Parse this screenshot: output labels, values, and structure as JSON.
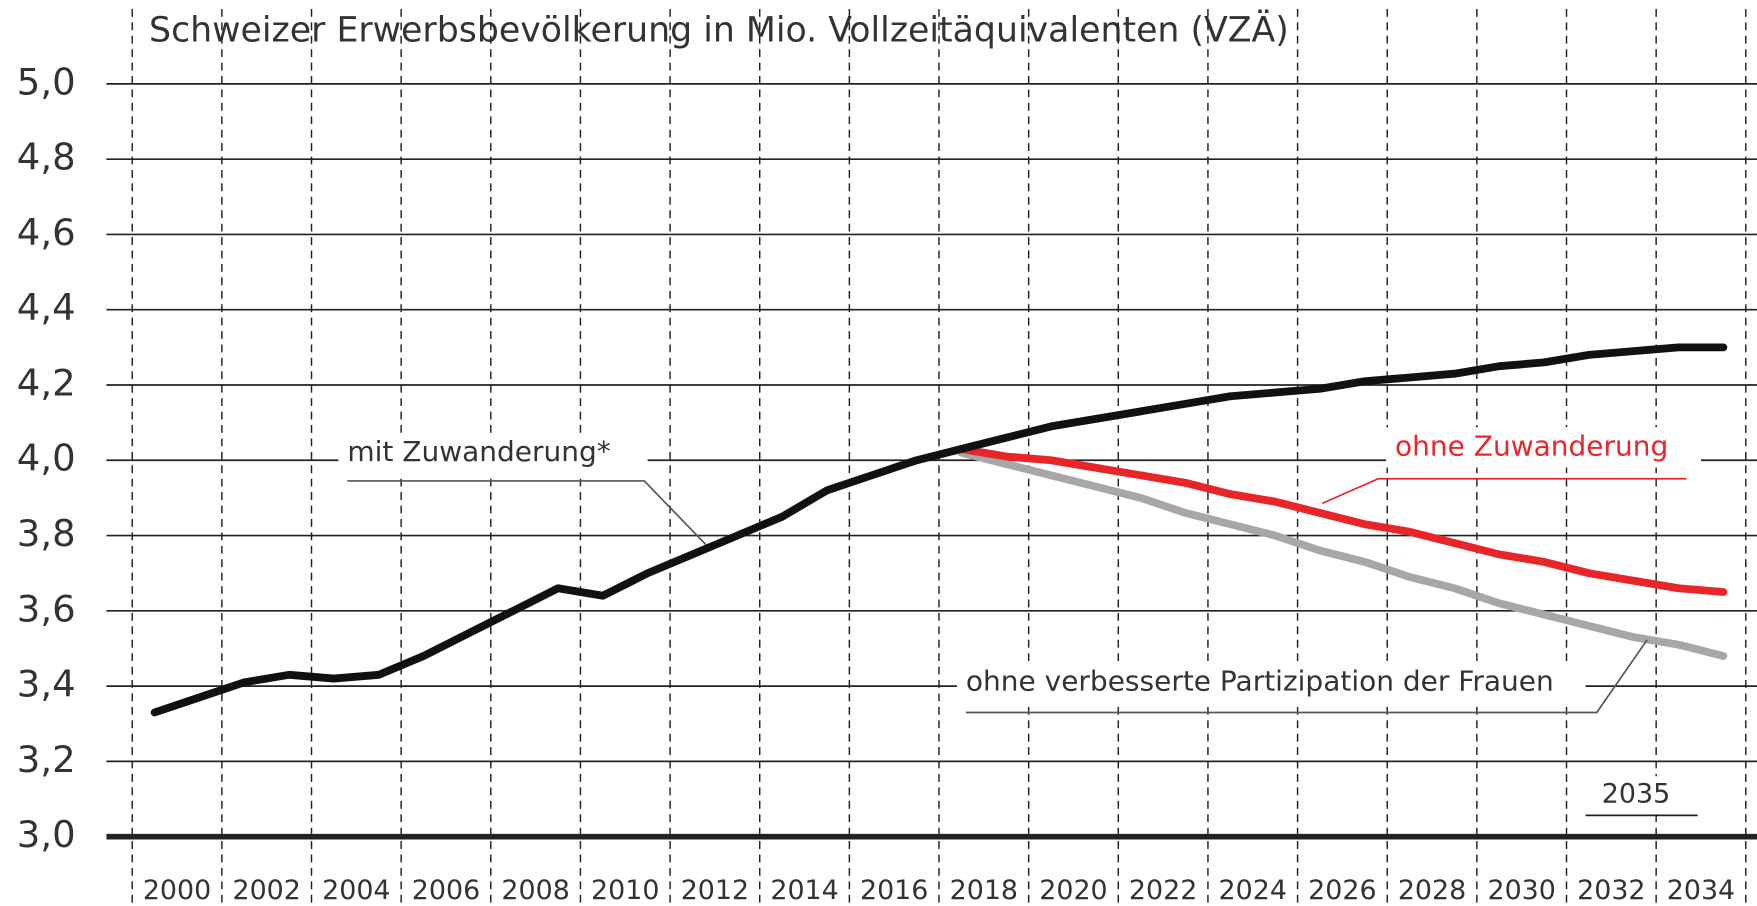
{
  "chart_data": {
    "type": "line",
    "title": "Schweizer Erwerbsbevölkerung in Mio. Vollzeitäquivalenten (VZÄ)",
    "x": [
      2000,
      2001,
      2002,
      2003,
      2004,
      2005,
      2006,
      2007,
      2008,
      2009,
      2010,
      2011,
      2012,
      2013,
      2014,
      2015,
      2016,
      2017,
      2018,
      2019,
      2020,
      2021,
      2022,
      2023,
      2024,
      2025,
      2026,
      2027,
      2028,
      2029,
      2030,
      2031,
      2032,
      2033,
      2034,
      2035
    ],
    "series": [
      {
        "name": "mit Zuwanderung*",
        "color": "#111111",
        "values": [
          3.33,
          3.37,
          3.41,
          3.43,
          3.42,
          3.43,
          3.48,
          3.54,
          3.6,
          3.66,
          3.64,
          3.7,
          3.75,
          3.8,
          3.85,
          3.92,
          3.96,
          4.0,
          4.03,
          4.06,
          4.09,
          4.11,
          4.13,
          4.15,
          4.17,
          4.18,
          4.19,
          4.21,
          4.22,
          4.23,
          4.25,
          4.26,
          4.28,
          4.29,
          4.3,
          4.3
        ]
      },
      {
        "name": "ohne Zuwanderung",
        "color": "#e8262a",
        "values": [
          null,
          null,
          null,
          null,
          null,
          null,
          null,
          null,
          null,
          null,
          null,
          null,
          null,
          null,
          null,
          null,
          null,
          null,
          4.03,
          4.01,
          4.0,
          3.98,
          3.96,
          3.94,
          3.91,
          3.89,
          3.86,
          3.83,
          3.81,
          3.78,
          3.75,
          3.73,
          3.7,
          3.68,
          3.66,
          3.65
        ]
      },
      {
        "name": "ohne verbesserte Partizipation der Frauen",
        "color": "#a7a7a9",
        "values": [
          null,
          null,
          null,
          null,
          null,
          null,
          null,
          null,
          null,
          null,
          null,
          null,
          null,
          null,
          null,
          null,
          null,
          null,
          4.02,
          3.99,
          3.96,
          3.93,
          3.9,
          3.86,
          3.83,
          3.8,
          3.76,
          3.73,
          3.69,
          3.66,
          3.62,
          3.59,
          3.56,
          3.53,
          3.51,
          3.48
        ]
      }
    ],
    "xticks": [
      2000,
      2002,
      2004,
      2006,
      2008,
      2010,
      2012,
      2014,
      2016,
      2018,
      2020,
      2022,
      2024,
      2026,
      2028,
      2030,
      2032,
      2034
    ],
    "ylim": [
      3.0,
      5.0
    ],
    "yticks": [
      {
        "value": 3.0,
        "label": "3,0"
      },
      {
        "value": 3.2,
        "label": "3,2"
      },
      {
        "value": 3.4,
        "label": "3,4"
      },
      {
        "value": 3.6,
        "label": "3,6"
      },
      {
        "value": 3.8,
        "label": "3,8"
      },
      {
        "value": 4.0,
        "label": "4,0"
      },
      {
        "value": 4.2,
        "label": "4,2"
      },
      {
        "value": 4.4,
        "label": "4,4"
      },
      {
        "value": 4.6,
        "label": "4,6"
      },
      {
        "value": 4.8,
        "label": "4,8"
      },
      {
        "value": 5.0,
        "label": "5,0"
      }
    ],
    "annotation": "2035",
    "grid": true
  }
}
